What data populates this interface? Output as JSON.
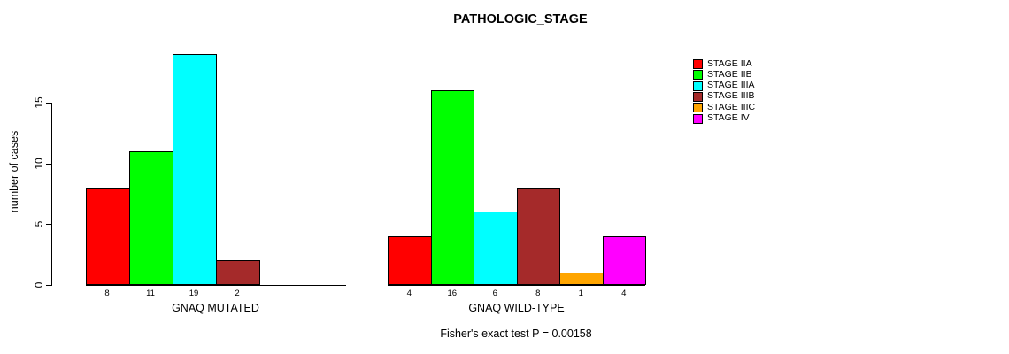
{
  "chart_data": {
    "type": "bar",
    "title": "PATHOLOGIC_STAGE",
    "ylabel": "number of cases",
    "ylim": [
      0,
      19
    ],
    "yticks": [
      0,
      5,
      10,
      15
    ],
    "grid": false,
    "legend_position": "right",
    "legend_entries": [
      "STAGE IIA",
      "STAGE IIB",
      "STAGE IIIA",
      "STAGE IIIB",
      "STAGE IIIC",
      "STAGE IV"
    ],
    "colors": [
      "#FF0000",
      "#00FF00",
      "#00FFFF",
      "#A52A2A",
      "#FFA500",
      "#FF00FF"
    ],
    "groups": [
      {
        "label": "GNAQ MUTATED",
        "values": [
          8,
          11,
          19,
          2,
          0,
          0
        ]
      },
      {
        "label": "GNAQ WILD-TYPE",
        "values": [
          4,
          16,
          6,
          8,
          1,
          4
        ]
      }
    ],
    "bar_value_labels_shown": true,
    "annotation": "Fisher's exact test P = 0.00158"
  }
}
